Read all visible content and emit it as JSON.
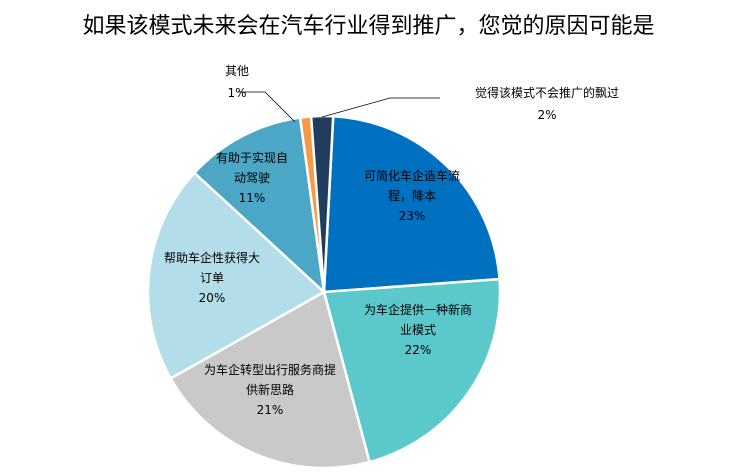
{
  "chart_data": {
    "type": "pie",
    "title": "如果该模式未来会在汽车行业得到推广，您觉的原因可能是",
    "slices": [
      {
        "label_lines": [
          "可简化车企造车流",
          "程，降本"
        ],
        "pct_text": "23%",
        "value": 23,
        "color": "#0070C0"
      },
      {
        "label_lines": [
          "为车企提供一种新商",
          "业模式"
        ],
        "pct_text": "22%",
        "value": 22,
        "color": "#5BC8CC"
      },
      {
        "label_lines": [
          "为车企转型出行服务商提",
          "供新思路"
        ],
        "pct_text": "21%",
        "value": 21,
        "color": "#C9C9C9"
      },
      {
        "label_lines": [
          "帮助车企性获得大",
          "订单"
        ],
        "pct_text": "20%",
        "value": 20,
        "color": "#B3DDE8"
      },
      {
        "label_lines": [
          "有助于实现自",
          "动驾驶"
        ],
        "pct_text": "11%",
        "value": 11,
        "color": "#4BA7C5"
      },
      {
        "label_lines": [
          "其他"
        ],
        "pct_text": "1%",
        "value": 1,
        "color": "#F79A46"
      },
      {
        "label_lines": [
          "觉得该模式不会推广的飘过"
        ],
        "pct_text": "2%",
        "value": 2,
        "color": "#203D5E"
      }
    ]
  }
}
